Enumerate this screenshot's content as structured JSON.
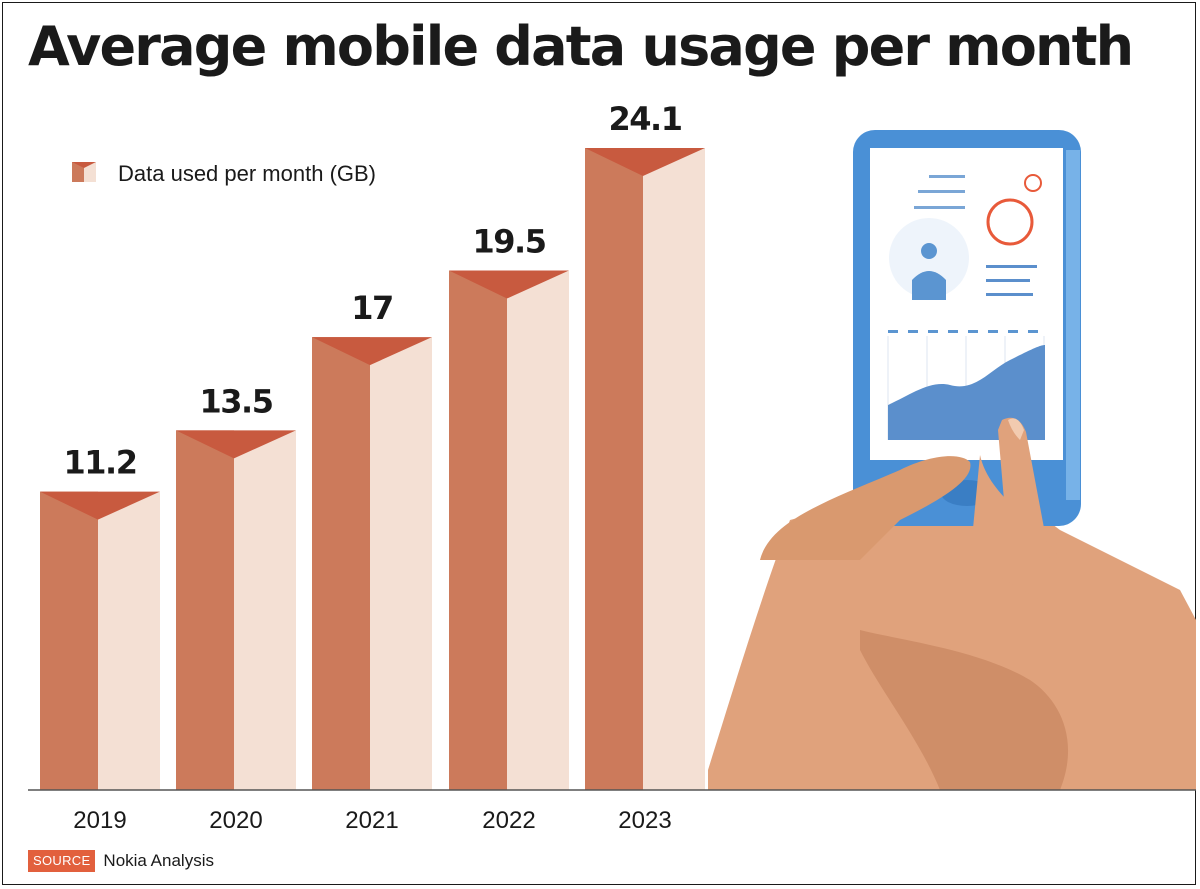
{
  "title": "Average mobile data usage per month",
  "source": {
    "tag": "SOURCE",
    "text": "Nokia Analysis"
  },
  "colors": {
    "bar_front": "#cc7a5b",
    "bar_side": "#f4e0d4",
    "bar_cap": "#c85a3f",
    "text": "#1a1a1a",
    "axis": "#555555",
    "phone_body": "#4a90d6",
    "phone_screen": "#ffffff",
    "hand": "#e0a27c"
  },
  "illustration": {
    "icon": "hand-holding-smartphone"
  },
  "chart_data": {
    "type": "bar",
    "categories": [
      "2019",
      "2020",
      "2021",
      "2022",
      "2023"
    ],
    "series": [
      {
        "name": "Data used per month (GB)",
        "values": [
          11.2,
          13.5,
          17,
          19.5,
          24.1
        ]
      }
    ],
    "data_labels": [
      "11.2",
      "13.5",
      "17",
      "19.5",
      "24.1"
    ],
    "xlabel": "",
    "ylabel": "",
    "ylim": [
      0,
      24.1
    ],
    "grid": false,
    "legend": "top-left"
  }
}
